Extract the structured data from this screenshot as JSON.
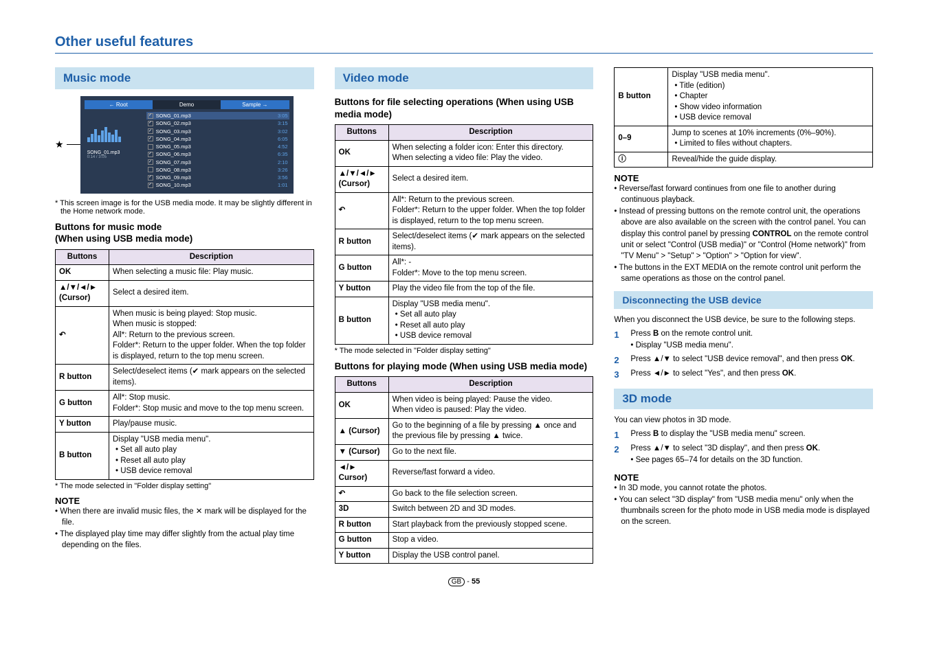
{
  "page": {
    "title": "Other useful features",
    "footer_region": "GB",
    "footer_page": "55"
  },
  "music": {
    "header": "Music mode",
    "screenshot": {
      "tabs": {
        "root": "Root",
        "demo": "Demo",
        "sample": "Sample"
      },
      "current": "SONG_01.mp3",
      "time": "0:14 / 3:05",
      "songs": [
        {
          "name": "SONG_01.mp3",
          "dur": "3:05",
          "checked": true,
          "selected": true
        },
        {
          "name": "SONG_02.mp3",
          "dur": "3:15",
          "checked": true,
          "selected": false
        },
        {
          "name": "SONG_03.mp3",
          "dur": "3:02",
          "checked": true,
          "selected": false
        },
        {
          "name": "SONG_04.mp3",
          "dur": "6:05",
          "checked": true,
          "selected": false
        },
        {
          "name": "SONG_05.mp3",
          "dur": "4:52",
          "checked": false,
          "selected": false
        },
        {
          "name": "SONG_06.mp3",
          "dur": "6:35",
          "checked": true,
          "selected": false
        },
        {
          "name": "SONG_07.mp3",
          "dur": "2:10",
          "checked": true,
          "selected": false
        },
        {
          "name": "SONG_08.mp3",
          "dur": "3:26",
          "checked": false,
          "selected": false
        },
        {
          "name": "SONG_09.mp3",
          "dur": "3:56",
          "checked": true,
          "selected": false
        },
        {
          "name": "SONG_10.mp3",
          "dur": "1:01",
          "checked": true,
          "selected": false
        }
      ]
    },
    "screenshot_note": "This screen image is for the USB media mode. It may be slightly different in the Home network mode.",
    "buttons_title": "Buttons for music mode\n(When using USB media mode)",
    "table_head": {
      "buttons": "Buttons",
      "desc": "Description"
    },
    "table": [
      {
        "btn": "OK",
        "desc": "When selecting a music file: Play music."
      },
      {
        "btn": "▲/▼/◄/►\n(Cursor)",
        "desc": "Select a desired item."
      },
      {
        "btn": "↶",
        "desc": "When music is being played: Stop music.\nWhen music is stopped:\nAll*: Return to the previous screen.\nFolder*: Return to the upper folder. When the top folder is displayed, return to the top menu screen."
      },
      {
        "btn": "R button",
        "desc": "Select/deselect items (✔ mark appears on the selected items)."
      },
      {
        "btn": "G button",
        "desc": "All*: Stop music.\nFolder*: Stop music and move to the top menu screen."
      },
      {
        "btn": "Y button",
        "desc": "Play/pause music."
      },
      {
        "btn": "B button",
        "desc": "Display \"USB media menu\".\n• Set all auto play\n• Reset all auto play\n• USB device removal"
      }
    ],
    "footnote": "* The mode selected in \"Folder display setting\"",
    "note_title": "NOTE",
    "notes": [
      "When there are invalid music files, the ✕ mark will be displayed for the file.",
      "The displayed play time may differ slightly from the actual play time depending on the files."
    ]
  },
  "video": {
    "header": "Video mode",
    "select_title": "Buttons for file selecting operations (When using USB media mode)",
    "table_head": {
      "buttons": "Buttons",
      "desc": "Description"
    },
    "select_table": [
      {
        "btn": "OK",
        "desc": "When selecting a folder icon: Enter this directory.\nWhen selecting a video file: Play the video."
      },
      {
        "btn": "▲/▼/◄/►\n(Cursor)",
        "desc": "Select a desired item."
      },
      {
        "btn": "↶",
        "desc": "All*: Return to the previous screen.\nFolder*: Return to the upper folder. When the top folder is displayed, return to the top menu screen."
      },
      {
        "btn": "R button",
        "desc": "Select/deselect items (✔ mark appears on the selected items)."
      },
      {
        "btn": "G button",
        "desc": "All*: -\nFolder*: Move to the top menu screen."
      },
      {
        "btn": "Y button",
        "desc": "Play the video file from the top of the file."
      },
      {
        "btn": "B button",
        "desc": "Display \"USB media menu\".\n• Set all auto play\n• Reset all auto play\n• USB device removal"
      }
    ],
    "footnote": "* The mode selected in \"Folder display setting\"",
    "play_title": "Buttons for playing mode (When using USB media mode)",
    "play_table": [
      {
        "btn": "OK",
        "desc": "When video is being played: Pause the video.\nWhen video is paused: Play the video."
      },
      {
        "btn": "▲ (Cursor)",
        "desc": "Go to the beginning of a file by pressing ▲ once and the previous file by pressing ▲ twice."
      },
      {
        "btn": "▼ (Cursor)",
        "desc": "Go to the next file."
      },
      {
        "btn": "◄/► Cursor)",
        "desc": "Reverse/fast forward a video."
      },
      {
        "btn": "↶",
        "desc": "Go back to the file selection screen."
      },
      {
        "btn": "3D",
        "desc": "Switch between 2D and 3D modes."
      },
      {
        "btn": "R button",
        "desc": "Start playback from the previously stopped scene."
      },
      {
        "btn": "G button",
        "desc": "Stop a video."
      },
      {
        "btn": "Y button",
        "desc": "Display the USB control panel."
      }
    ]
  },
  "col3": {
    "top_table": [
      {
        "btn": "B button",
        "desc": "Display \"USB media menu\".\n• Title (edition)\n• Chapter\n• Show video information\n• USB device removal"
      },
      {
        "btn": "0–9",
        "desc": "Jump to scenes at 10% increments (0%–90%).\n• Limited to files without chapters."
      },
      {
        "btn": "ⓘ",
        "desc": "Reveal/hide the guide display."
      }
    ],
    "note_title": "NOTE",
    "notes": [
      "Reverse/fast forward continues from one file to another during continuous playback.",
      "Instead of pressing buttons on the remote control unit, the operations above are also available on the screen with the control panel. You can display this control panel by pressing CONTROL on the remote control unit or select \"Control (USB media)\" or \"Control (Home network)\" from \"TV Menu\" > \"Setup\" > \"Option\" > \"Option for view\".",
      "The buttons in the EXT MEDIA on the remote control unit perform the same operations as those on the control panel."
    ],
    "disc_header": "Disconnecting the USB device",
    "disc_intro": "When you disconnect the USB device, be sure to the following steps.",
    "disc_steps": [
      {
        "n": "1",
        "main": "Press B on the remote control unit.",
        "sub": "Display \"USB media menu\"."
      },
      {
        "n": "2",
        "main": "Press ▲/▼ to select \"USB device removal\", and then press OK."
      },
      {
        "n": "3",
        "main": "Press ◄/► to select \"Yes\", and then press OK."
      }
    ],
    "mode3d_header": "3D mode",
    "mode3d_intro": "You can view photos in 3D mode.",
    "mode3d_steps": [
      {
        "n": "1",
        "main": "Press B to display the \"USB media menu\" screen."
      },
      {
        "n": "2",
        "main": "Press ▲/▼ to select \"3D display\", and then press OK.",
        "sub": "See pages 65–74 for details on the 3D function."
      }
    ],
    "mode3d_note_title": "NOTE",
    "mode3d_notes": [
      "In 3D mode, you cannot rotate the photos.",
      "You can select \"3D display\" from \"USB media menu\" only when the thumbnails screen for the photo mode in USB media mode is displayed on the screen."
    ]
  }
}
